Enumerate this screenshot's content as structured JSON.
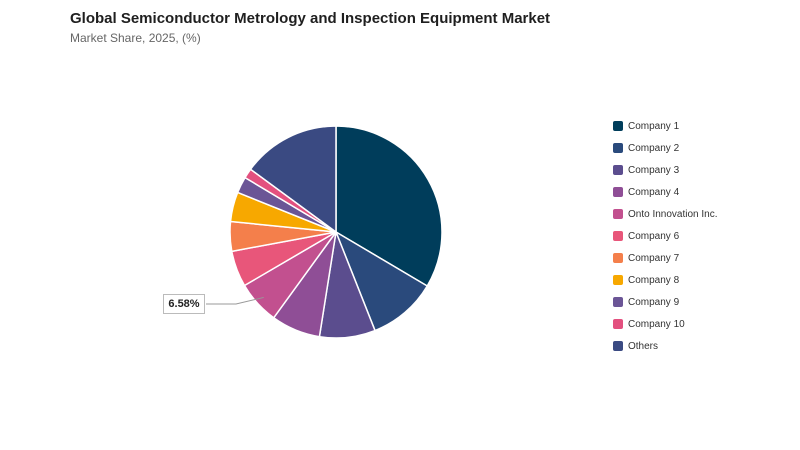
{
  "header": {
    "title": "Global Semiconductor Metrology and Inspection Equipment Market",
    "subtitle": "Market Share, 2025, (%)"
  },
  "chart_data": {
    "type": "pie",
    "title": "Global Semiconductor Metrology and Inspection Equipment Market",
    "subtitle": "Market Share, 2025, (%)",
    "legend_position": "right",
    "slices": [
      {
        "name": "Company 1",
        "value": 33.5,
        "color": "#003d5b"
      },
      {
        "name": "Company 2",
        "value": 10.5,
        "color": "#2a4a7c"
      },
      {
        "name": "Company 3",
        "value": 8.5,
        "color": "#5b4d8e"
      },
      {
        "name": "Company 4",
        "value": 7.5,
        "color": "#8f4e96"
      },
      {
        "name": "Onto Innovation Inc.",
        "value": 6.58,
        "color": "#c2508f"
      },
      {
        "name": "Company 6",
        "value": 5.5,
        "color": "#e8567a"
      },
      {
        "name": "Company 7",
        "value": 4.5,
        "color": "#f47f4b"
      },
      {
        "name": "Company 8",
        "value": 4.5,
        "color": "#f7a800"
      },
      {
        "name": "Company 9",
        "value": 2.5,
        "color": "#6b5596"
      },
      {
        "name": "Company 10",
        "value": 1.5,
        "color": "#e3507f"
      },
      {
        "name": "Others",
        "value": 14.92,
        "color": "#3a4a82"
      }
    ],
    "annotations": [
      {
        "slice": "Onto Innovation Inc.",
        "label": "6.58%"
      }
    ]
  }
}
